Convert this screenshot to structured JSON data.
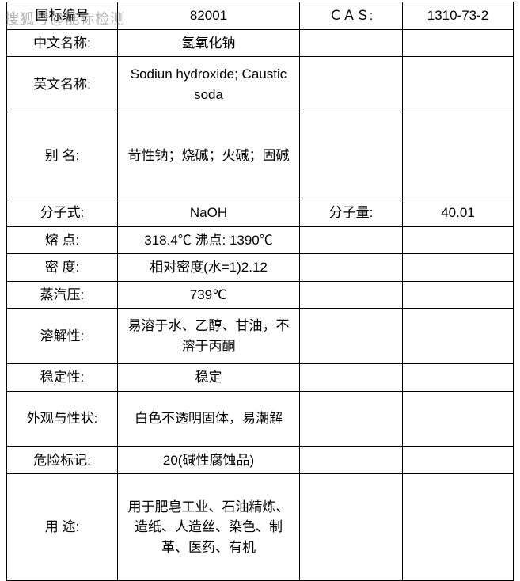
{
  "watermark": "搜狐号@能标检测",
  "table": {
    "rows": [
      {
        "height_class": "short",
        "cells": [
          "国标编号",
          "82001",
          "ＣＡＳ:",
          "1310-73-2"
        ]
      },
      {
        "height_class": "short",
        "cells": [
          "中文名称:",
          "氢氧化钠",
          "",
          ""
        ]
      },
      {
        "height_class": "med",
        "cells": [
          "英文名称:",
          "Sodiun hydroxide; Caustic soda",
          "",
          ""
        ]
      },
      {
        "height_class": "tall",
        "cells": [
          "别 名:",
          "苛性钠；烧碱；火碱；固碱",
          "",
          ""
        ]
      },
      {
        "height_class": "short",
        "cells": [
          "分子式:",
          "NaOH",
          "分子量:",
          "40.01"
        ]
      },
      {
        "height_class": "short",
        "cells": [
          "熔 点:",
          "318.4℃ 沸点: 1390℃",
          "",
          ""
        ]
      },
      {
        "height_class": "short",
        "cells": [
          "密 度:",
          "相对密度(水=1)2.12",
          "",
          ""
        ]
      },
      {
        "height_class": "short",
        "cells": [
          "蒸汽压:",
          "739℃",
          "",
          ""
        ]
      },
      {
        "height_class": "med",
        "cells": [
          "溶解性:",
          "易溶于水、乙醇、甘油，不溶于丙酮",
          "",
          ""
        ]
      },
      {
        "height_class": "short",
        "cells": [
          "稳定性:",
          "稳定",
          "",
          ""
        ]
      },
      {
        "height_class": "med",
        "cells": [
          "外观与性状:",
          "白色不透明固体，易潮解",
          "",
          ""
        ]
      },
      {
        "height_class": "short",
        "cells": [
          "危险标记:",
          "20(碱性腐蚀品)",
          "",
          ""
        ]
      },
      {
        "height_class": "xtall",
        "cells": [
          "用 途:",
          "用于肥皂工业、石油精炼、造纸、人造丝、染色、制革、医药、有机",
          "",
          ""
        ]
      }
    ]
  },
  "styles": {
    "border_color": "#000000",
    "text_color": "#000000",
    "background_color": "#ffffff",
    "font_size": 17,
    "watermark_color": "rgba(120,120,120,0.55)"
  }
}
